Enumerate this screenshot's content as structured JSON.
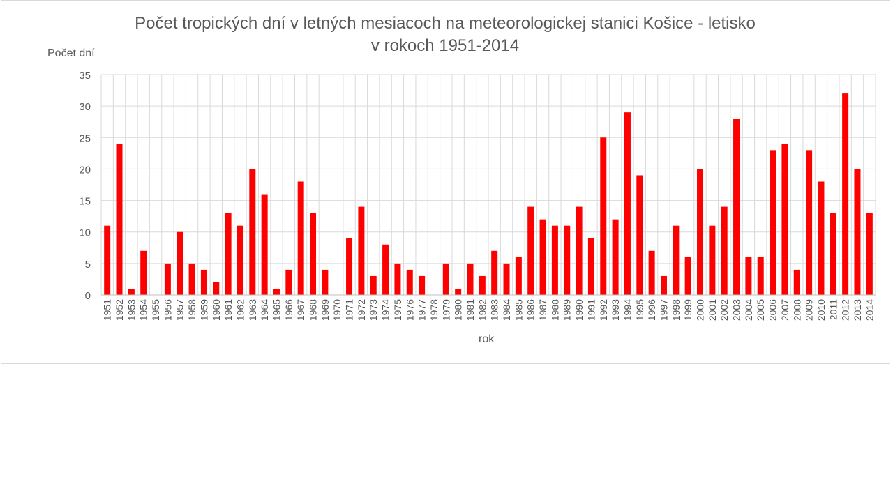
{
  "chart_data": {
    "type": "bar",
    "title_line1": "Počet tropických dní v letných mesiacoch na meteorologickej stanici Košice - letisko",
    "title_line2": "v rokoch 1951-2014",
    "ylabel": "Počet dní",
    "xlabel": "rok",
    "ylim": [
      0,
      35
    ],
    "yticks": [
      0,
      5,
      10,
      15,
      20,
      25,
      30,
      35
    ],
    "grid": true,
    "bar_color": "#ff0000",
    "categories": [
      "1951",
      "1952",
      "1953",
      "1954",
      "1955",
      "1956",
      "1957",
      "1958",
      "1959",
      "1960",
      "1961",
      "1962",
      "1963",
      "1964",
      "1965",
      "1966",
      "1967",
      "1968",
      "1969",
      "1970",
      "1971",
      "1972",
      "1973",
      "1974",
      "1975",
      "1976",
      "1977",
      "1978",
      "1979",
      "1980",
      "1981",
      "1982",
      "1983",
      "1984",
      "1985",
      "1986",
      "1987",
      "1988",
      "1989",
      "1990",
      "1991",
      "1992",
      "1993",
      "1994",
      "1995",
      "1996",
      "1997",
      "1998",
      "1999",
      "2000",
      "2001",
      "2002",
      "2003",
      "2004",
      "2005",
      "2006",
      "2007",
      "2008",
      "2009",
      "2010",
      "2011",
      "2012",
      "2013",
      "2014"
    ],
    "values": [
      11,
      24,
      1,
      7,
      0,
      5,
      10,
      5,
      4,
      2,
      13,
      11,
      20,
      16,
      1,
      4,
      18,
      13,
      4,
      0,
      9,
      14,
      3,
      8,
      5,
      4,
      3,
      0,
      5,
      1,
      5,
      3,
      7,
      5,
      6,
      14,
      12,
      11,
      11,
      14,
      9,
      25,
      12,
      29,
      19,
      7,
      3,
      11,
      6,
      20,
      11,
      14,
      28,
      6,
      6,
      23,
      24,
      4,
      23,
      18,
      13,
      32,
      20,
      13
    ]
  }
}
